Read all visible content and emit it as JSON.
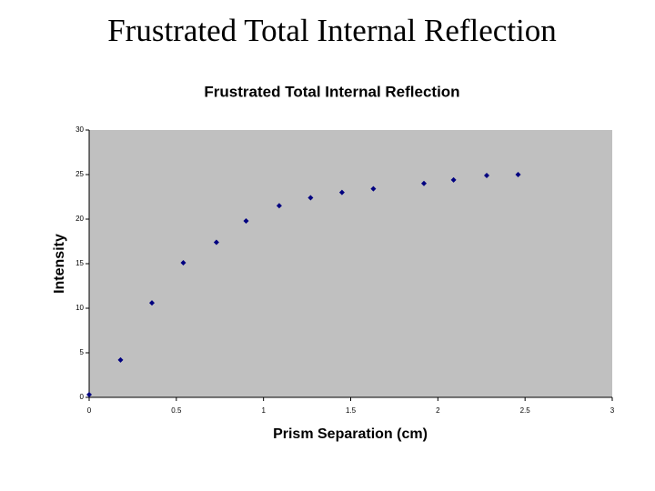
{
  "slide_title": "Frustrated Total Internal Reflection",
  "chart_data": {
    "type": "scatter",
    "title": "Frustrated Total Internal Reflection",
    "xlabel": "Prism Separation (cm)",
    "ylabel": "Intensity",
    "x": [
      0,
      0.18,
      0.36,
      0.54,
      0.73,
      0.9,
      1.09,
      1.27,
      1.45,
      1.63,
      1.92,
      2.09,
      2.28,
      2.46
    ],
    "series": [
      {
        "color": "#000080",
        "values": [
          0.3,
          4.2,
          10.6,
          15.1,
          17.4,
          19.8,
          21.5,
          22.4,
          23.0,
          23.4,
          24.0,
          24.4,
          24.9,
          25.0
        ]
      }
    ],
    "xlim": [
      0,
      3
    ],
    "xticks": [
      0,
      0.5,
      1,
      1.5,
      2,
      2.5,
      3
    ],
    "ylim": [
      0,
      30
    ],
    "yticks": [
      0,
      5,
      10,
      15,
      20,
      25,
      30
    ],
    "plot_background": "#c0c0c0"
  }
}
